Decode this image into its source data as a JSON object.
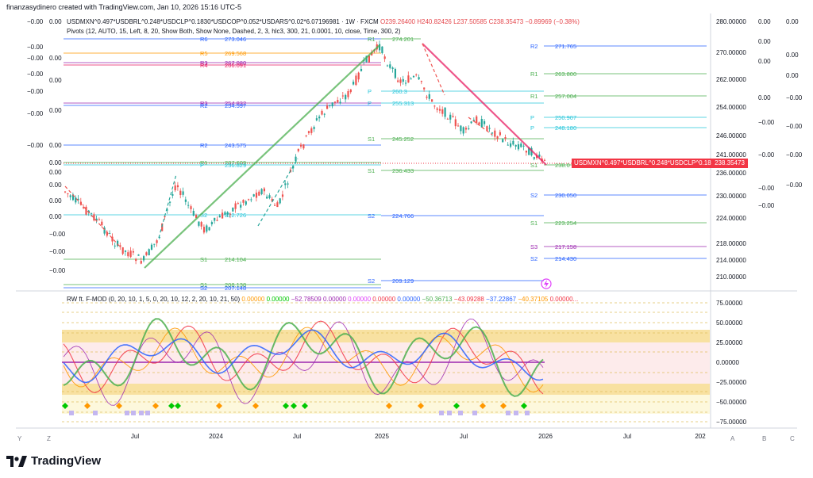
{
  "header": {
    "credit": "finanzasydinero created with TradingView.com, Jan 10, 2026 15:16 UTC-5"
  },
  "legend": {
    "symbol": "USDMXN^0.497*USDBRL^0.248*USDCLP^0.1830*USDCOP^0.052*USDARS^0.02*6.07196981 · 1W · FXCM",
    "o": "O239.26400",
    "h": "H240.82426",
    "l": "L237.50585",
    "c": "C238.35473",
    "change": "−0.89969 (−0.38%)",
    "pivots": "Pivots (12, AUTO, 15, Left, 8, 20, Show Both, Show None, Dashed, 2, 3, hlc3, 300, 21, 0.0001, 10, close, Time, 300, 2)"
  },
  "indicator": {
    "name": "RW ft. F-MOD (0, 20, 10, 1, 5, 0, 20, 10, 12, 2, 20, 10, 21, 50)",
    "values": [
      {
        "text": "0.00000",
        "color": "#ff9800"
      },
      {
        "text": "0.00000",
        "color": "#00c800"
      },
      {
        "text": "−52.78509",
        "color": "#9c27b0"
      },
      {
        "text": "0.00000",
        "color": "#9c27b0"
      },
      {
        "text": "0.00000",
        "color": "#e040fb"
      },
      {
        "text": "0.00000",
        "color": "#f23645"
      },
      {
        "text": "0.00000",
        "color": "#2962ff"
      },
      {
        "text": "−50.36713",
        "color": "#4caf50"
      },
      {
        "text": "−43.09288",
        "color": "#f23645"
      },
      {
        "text": "−37.22867",
        "color": "#2962ff"
      },
      {
        "text": "−40.37105",
        "color": "#ff9800"
      },
      {
        "text": "0.00000...",
        "color": "#f23645"
      }
    ]
  },
  "brand": "TradingView",
  "bottom": {
    "left": [
      "Y",
      "Z"
    ],
    "right": [
      "A",
      "B",
      "C"
    ]
  },
  "price_tag": {
    "label": "USDMXN^0.497*USDBRL^0.248*USDCLP^0.18...",
    "value": "238.35473"
  },
  "chart_data": [
    {
      "type": "candlestick",
      "x_labels": [
        "Jul",
        "2024",
        "Jul",
        "2025",
        "Jul",
        "2026",
        "Jul",
        "202"
      ],
      "y_ticks": [
        "280.00000",
        "270.00000",
        "262.00000",
        "254.00000",
        "246.00000",
        "241.00000",
        "236.00000",
        "230.00000",
        "224.00000",
        "218.00000",
        "214.00000",
        "210.00000"
      ],
      "last_close": 238.35473,
      "left_overlay_values": [
        "0.00",
        "0.00",
        "0.00",
        "0.00",
        "0.00",
        "0.00",
        "0.00",
        "0.00",
        "0.00",
        "0.00",
        "−0.00",
        "−0.00",
        "−0.00",
        "−0.00",
        "−0.00",
        "−0.00",
        "−0.00",
        "−0.00",
        "−0.00",
        "−0.00"
      ],
      "right_overlay_values": [
        "0.00",
        "0.00",
        "0.00",
        "0.00",
        "0.00",
        "0.00",
        "0.00",
        "−0.00",
        "−0.00",
        "−0.00",
        "−0.00",
        "−0.00",
        "−0.00",
        "−0.00",
        "−0.00"
      ],
      "pivot_labels": [
        {
          "name": "R6",
          "value": "273.046"
        },
        {
          "name": "R5",
          "value": "269.568"
        },
        {
          "name": "R3",
          "value": "267.080"
        },
        {
          "name": "R4",
          "value": "266.091"
        },
        {
          "name": "R1",
          "value": "274.201"
        },
        {
          "name": "R3",
          "value": "254.832"
        },
        {
          "name": "R2",
          "value": "254.597"
        },
        {
          "name": "R2",
          "value": "243.575"
        },
        {
          "name": "R1",
          "value": "237.609"
        },
        {
          "name": "P",
          "value": "236.829"
        },
        {
          "name": "S1",
          "value": "214.104"
        },
        {
          "name": "S2",
          "value": "222.726"
        },
        {
          "name": "S1",
          "value": "208.138"
        },
        {
          "name": "S2",
          "value": "207.148"
        },
        {
          "name": "P",
          "value": "260.3"
        },
        {
          "name": "P",
          "value": "255.313"
        },
        {
          "name": "S1",
          "value": "245.252"
        },
        {
          "name": "S1",
          "value": "236.433"
        },
        {
          "name": "S2",
          "value": "224.766"
        },
        {
          "name": "S2",
          "value": "209.129"
        },
        {
          "name": "R2",
          "value": "271.765"
        },
        {
          "name": "R1",
          "value": "263.800"
        },
        {
          "name": "R1",
          "value": "257.004"
        },
        {
          "name": "P",
          "value": "250.907"
        },
        {
          "name": "P",
          "value": "248.180"
        },
        {
          "name": "S1",
          "value": "238.0"
        },
        {
          "name": "S2",
          "value": "230.050"
        },
        {
          "name": "S1",
          "value": "223.254"
        },
        {
          "name": "S3",
          "value": "217.158"
        },
        {
          "name": "S2",
          "value": "214.430"
        }
      ]
    },
    {
      "type": "line",
      "x_labels": [
        "Jul",
        "2024",
        "Jul",
        "2025",
        "Jul",
        "2026",
        "Jul",
        "202"
      ],
      "y_ticks": [
        "75.00000",
        "50.00000",
        "25.00000",
        "0.00000",
        "−25.00000",
        "−50.00000",
        "−75.00000"
      ],
      "ylim": [
        -75,
        75
      ]
    }
  ]
}
